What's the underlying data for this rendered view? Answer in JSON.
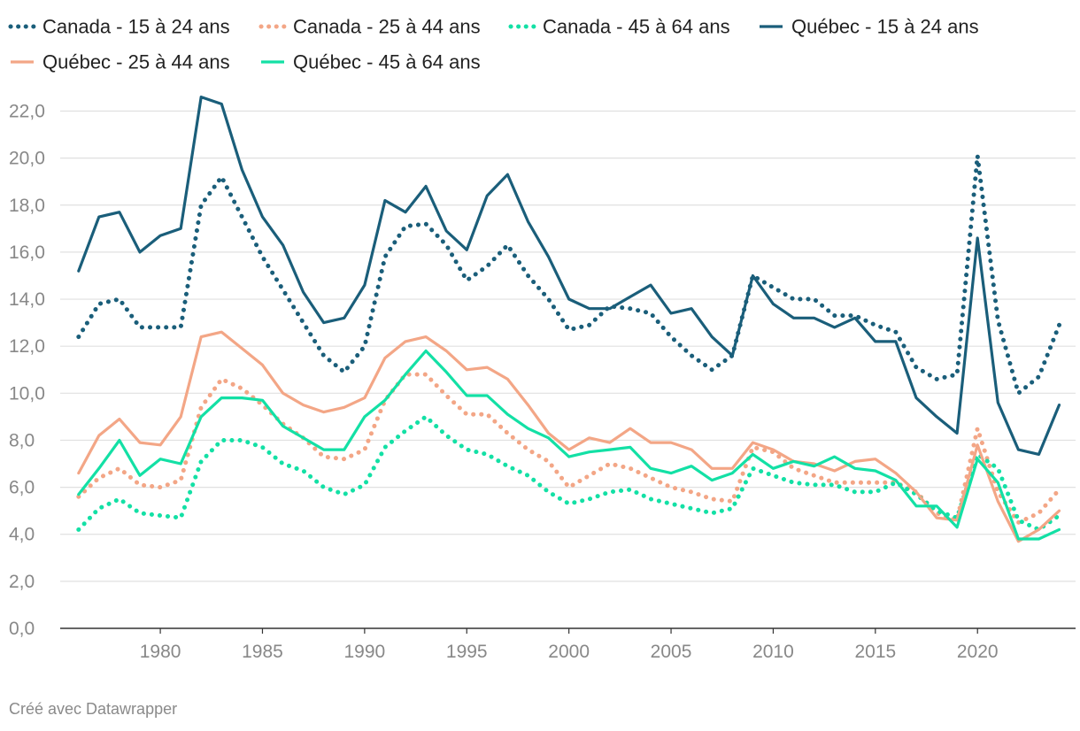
{
  "credit": "Créé avec Datawrapper",
  "chart_data": {
    "type": "line",
    "title": "",
    "xlabel": "",
    "ylabel": "",
    "xlim": [
      1976,
      2024
    ],
    "ylim": [
      0,
      22
    ],
    "grid": true,
    "legend_position": "top",
    "yticks": [
      0,
      2,
      4,
      6,
      8,
      10,
      12,
      14,
      16,
      18,
      20,
      22
    ],
    "ytick_labels": [
      "0,0",
      "2,0",
      "4,0",
      "6,0",
      "8,0",
      "10,0",
      "12,0",
      "14,0",
      "16,0",
      "18,0",
      "20,0",
      "22,0"
    ],
    "xticks": [
      1980,
      1985,
      1990,
      1995,
      2000,
      2005,
      2010,
      2015,
      2020
    ],
    "xtick_labels": [
      "1980",
      "1985",
      "1990",
      "1995",
      "2000",
      "2005",
      "2010",
      "2015",
      "2020"
    ],
    "x": [
      1976,
      1977,
      1978,
      1979,
      1980,
      1981,
      1982,
      1983,
      1984,
      1985,
      1986,
      1987,
      1988,
      1989,
      1990,
      1991,
      1992,
      1993,
      1994,
      1995,
      1996,
      1997,
      1998,
      1999,
      2000,
      2001,
      2002,
      2003,
      2004,
      2005,
      2006,
      2007,
      2008,
      2009,
      2010,
      2011,
      2012,
      2013,
      2014,
      2015,
      2016,
      2017,
      2018,
      2019,
      2020,
      2021,
      2022,
      2023,
      2024
    ],
    "series": [
      {
        "name": "Canada - 15 à 24 ans",
        "color": "#1a5e7a",
        "style": "dotted",
        "values": [
          12.4,
          13.8,
          14.0,
          12.8,
          12.8,
          12.8,
          18.0,
          19.2,
          17.5,
          15.8,
          14.4,
          13.0,
          11.6,
          10.9,
          12.0,
          15.8,
          17.1,
          17.2,
          16.3,
          14.8,
          15.4,
          16.3,
          15.0,
          14.0,
          12.7,
          12.9,
          13.7,
          13.6,
          13.4,
          12.4,
          11.6,
          11.0,
          11.6,
          15.0,
          14.5,
          14.0,
          14.0,
          13.3,
          13.3,
          12.9,
          12.6,
          11.1,
          10.6,
          10.8,
          20.1,
          13.1,
          10.0,
          10.7,
          12.9
        ]
      },
      {
        "name": "Canada - 25 à 44 ans",
        "color": "#f3a686",
        "style": "dotted",
        "values": [
          5.6,
          6.4,
          6.8,
          6.1,
          6.0,
          6.3,
          9.4,
          10.6,
          10.2,
          9.5,
          8.7,
          8.1,
          7.3,
          7.2,
          7.6,
          9.7,
          10.8,
          10.8,
          9.9,
          9.1,
          9.1,
          8.3,
          7.6,
          7.1,
          6.0,
          6.5,
          7.0,
          6.8,
          6.4,
          6.0,
          5.8,
          5.5,
          5.4,
          7.7,
          7.5,
          6.8,
          6.5,
          6.2,
          6.2,
          6.2,
          6.2,
          5.8,
          4.9,
          4.6,
          8.5,
          5.8,
          4.5,
          4.9,
          5.9
        ]
      },
      {
        "name": "Canada - 45 à 64 ans",
        "color": "#13e0a5",
        "style": "dotted",
        "values": [
          4.2,
          5.1,
          5.5,
          4.9,
          4.8,
          4.7,
          7.1,
          8.0,
          8.0,
          7.7,
          7.0,
          6.7,
          6.0,
          5.7,
          6.1,
          7.7,
          8.4,
          9.0,
          8.2,
          7.6,
          7.4,
          6.9,
          6.5,
          5.8,
          5.3,
          5.5,
          5.8,
          5.9,
          5.5,
          5.3,
          5.1,
          4.9,
          5.1,
          6.8,
          6.5,
          6.2,
          6.1,
          6.1,
          5.8,
          5.8,
          6.2,
          5.7,
          5.0,
          4.7,
          7.4,
          6.8,
          4.6,
          4.2,
          4.8
        ]
      },
      {
        "name": "Québec - 15 à 24 ans",
        "color": "#1a5e7a",
        "style": "solid",
        "values": [
          15.2,
          17.5,
          17.7,
          16.0,
          16.7,
          17.0,
          22.6,
          22.3,
          19.5,
          17.5,
          16.3,
          14.3,
          13.0,
          13.2,
          14.6,
          18.2,
          17.7,
          18.8,
          16.9,
          16.1,
          18.4,
          19.3,
          17.3,
          15.8,
          14.0,
          13.6,
          13.6,
          14.1,
          14.6,
          13.4,
          13.6,
          12.4,
          11.6,
          15.0,
          13.8,
          13.2,
          13.2,
          12.8,
          13.2,
          12.2,
          12.2,
          9.8,
          9.0,
          8.3,
          16.6,
          9.6,
          7.6,
          7.4,
          9.5
        ]
      },
      {
        "name": "Québec - 25 à 44 ans",
        "color": "#f3a686",
        "style": "solid",
        "values": [
          6.6,
          8.2,
          8.9,
          7.9,
          7.8,
          9.0,
          12.4,
          12.6,
          11.9,
          11.2,
          10.0,
          9.5,
          9.2,
          9.4,
          9.8,
          11.5,
          12.2,
          12.4,
          11.8,
          11.0,
          11.1,
          10.6,
          9.5,
          8.3,
          7.6,
          8.1,
          7.9,
          8.5,
          7.9,
          7.9,
          7.6,
          6.8,
          6.8,
          7.9,
          7.6,
          7.1,
          7.0,
          6.7,
          7.1,
          7.2,
          6.6,
          5.8,
          4.7,
          4.6,
          7.8,
          5.4,
          3.7,
          4.2,
          5.0
        ]
      },
      {
        "name": "Québec - 45 à 64 ans",
        "color": "#13e0a5",
        "style": "solid",
        "values": [
          5.7,
          6.8,
          8.0,
          6.5,
          7.2,
          7.0,
          9.0,
          9.8,
          9.8,
          9.7,
          8.6,
          8.1,
          7.6,
          7.6,
          9.0,
          9.7,
          10.8,
          11.8,
          10.9,
          9.9,
          9.9,
          9.1,
          8.5,
          8.1,
          7.3,
          7.5,
          7.6,
          7.7,
          6.8,
          6.6,
          6.9,
          6.3,
          6.6,
          7.4,
          6.8,
          7.1,
          6.9,
          7.3,
          6.8,
          6.7,
          6.3,
          5.2,
          5.2,
          4.3,
          7.2,
          6.2,
          3.8,
          3.8,
          4.2
        ]
      }
    ]
  }
}
